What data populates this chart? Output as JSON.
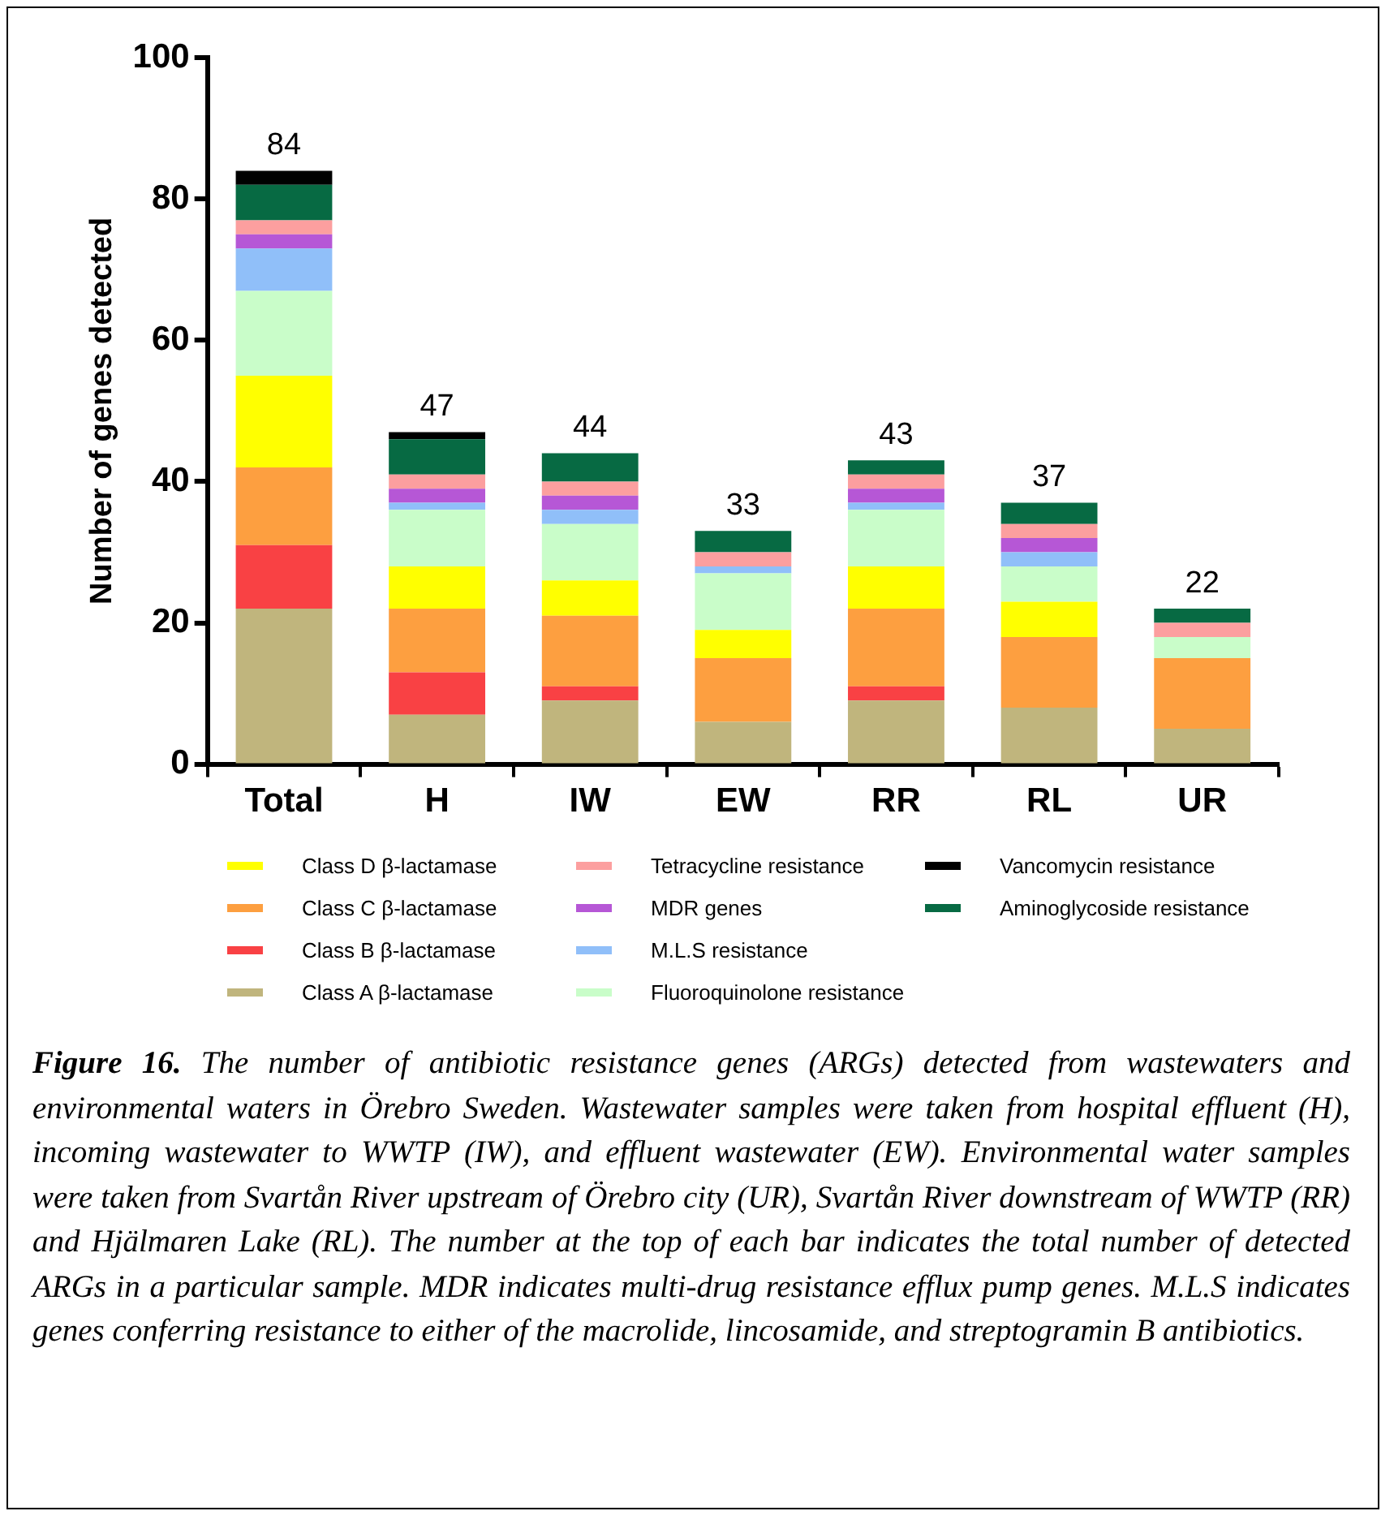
{
  "chart_data": {
    "type": "bar",
    "stacked": true,
    "ylabel": "Number of genes detected",
    "categories": [
      "Total",
      "H",
      "IW",
      "EW",
      "RR",
      "RL",
      "UR"
    ],
    "ylim": [
      0,
      100
    ],
    "yticks": [
      0,
      20,
      40,
      60,
      80,
      100
    ],
    "grid": false,
    "legend": "bottom",
    "series": [
      {
        "name": "Class A β-lactamase",
        "color": "#c0b57d",
        "values": [
          22,
          7,
          9,
          6,
          9,
          8,
          5
        ]
      },
      {
        "name": "Class B β-lactamase",
        "color": "#f94144",
        "values": [
          9,
          6,
          2,
          0,
          2,
          0,
          0
        ]
      },
      {
        "name": "Class C β-lactamase",
        "color": "#fd9f40",
        "values": [
          11,
          9,
          10,
          9,
          11,
          10,
          10
        ]
      },
      {
        "name": "Class D β-lactamase",
        "color": "#ffff00",
        "values": [
          13,
          6,
          5,
          4,
          6,
          5,
          0
        ]
      },
      {
        "name": "Fluoroquinolone resistance",
        "color": "#c9fdc9",
        "values": [
          12,
          8,
          8,
          8,
          8,
          5,
          3
        ]
      },
      {
        "name": "M.L.S resistance",
        "color": "#90bff9",
        "values": [
          6,
          1,
          2,
          1,
          1,
          2,
          0
        ]
      },
      {
        "name": "MDR genes",
        "color": "#b657d6",
        "values": [
          2,
          2,
          2,
          0,
          2,
          2,
          0
        ]
      },
      {
        "name": "Tetracycline resistance",
        "color": "#fc9f9f",
        "values": [
          2,
          2,
          2,
          2,
          2,
          2,
          2
        ]
      },
      {
        "name": "Aminoglycoside resistance",
        "color": "#076a43",
        "values": [
          5,
          5,
          4,
          3,
          2,
          3,
          2
        ]
      },
      {
        "name": "Vancomycin resistance",
        "color": "#000000",
        "values": [
          2,
          1,
          0,
          0,
          0,
          0,
          0
        ]
      }
    ],
    "totals": [
      "84",
      "47",
      "44",
      "33",
      "43",
      "37",
      "22"
    ],
    "annotations": [
      "Figure 16.",
      "The number of antibiotic resistance genes (ARGs) detected from wastewaters and environmental waters in Örebro Sweden. Wastewater samples were taken from hospital effluent (H), incoming wastewater to WWTP (IW), and effluent wastewater (EW). Environmental water samples were taken from Svartån River upstream of Örebro city (UR), Svartån River downstream of WWTP (RR) and Hjälmaren Lake (RL). The number at the top of each bar indicates the total number of detected ARGs in a particular sample. MDR indicates multi-drug resistance efflux pump genes. M.L.S indicates genes conferring resistance to either of the macrolide, lincosamide, and streptogramin B antibiotics."
    ]
  }
}
